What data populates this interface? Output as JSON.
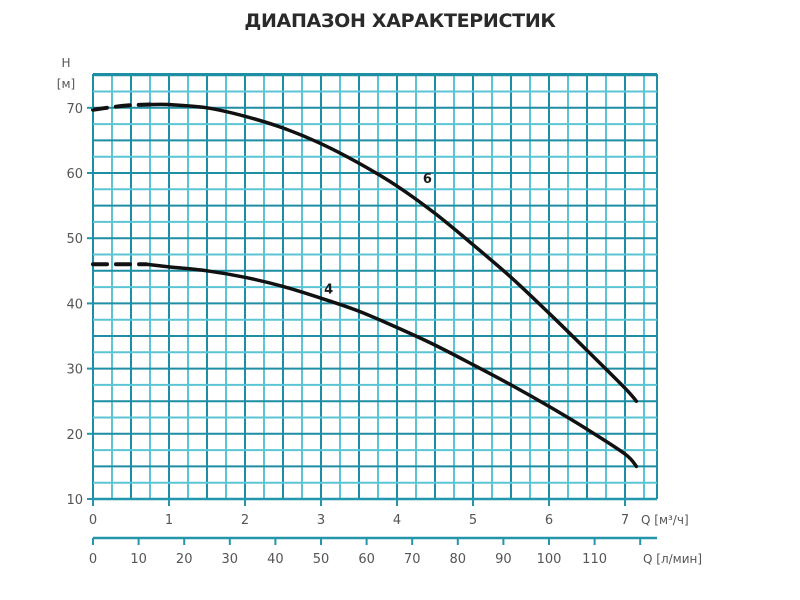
{
  "title": "ДИАПАЗОН ХАРАКТЕРИСТИК",
  "chart_data": {
    "type": "line",
    "title": "ДИАПАЗОН ХАРАКТЕРИСТИК",
    "ylabel": "H",
    "ylabel_unit": "[м]",
    "xlabel": "Q [м³/ч]",
    "x2label": "Q [л/мин]",
    "ylim": [
      10,
      75
    ],
    "xlim": [
      0,
      7.45
    ],
    "x2lim": [
      0,
      124.2
    ],
    "grid": true,
    "yticks": [
      10,
      20,
      30,
      40,
      50,
      60,
      70
    ],
    "xticks": [
      0,
      1,
      2,
      3,
      4,
      5,
      6,
      7
    ],
    "x2ticks": [
      0,
      10,
      20,
      30,
      40,
      50,
      60,
      70,
      80,
      90,
      100,
      110,
      120
    ],
    "x2tick_labels": [
      "0",
      "10",
      "20",
      "30",
      "40",
      "50",
      "60",
      "70",
      "80",
      "90",
      "100",
      "110",
      ""
    ],
    "series": [
      {
        "name": "6",
        "dashed_until": 0.75,
        "x": [
          0,
          0.25,
          0.5,
          0.75,
          1.0,
          1.5,
          2.0,
          2.5,
          3.0,
          3.5,
          4.0,
          4.5,
          5.0,
          5.5,
          6.0,
          6.5,
          7.0,
          7.15
        ],
        "y": [
          69.7,
          70.1,
          70.4,
          70.5,
          70.5,
          70.0,
          68.7,
          66.9,
          64.5,
          61.5,
          58.0,
          53.8,
          49.0,
          44.0,
          38.5,
          32.8,
          27.0,
          25.0
        ],
        "label_pos": [
          4.4,
          58.5
        ]
      },
      {
        "name": "4",
        "dashed_until": 0.7,
        "x": [
          0,
          0.25,
          0.5,
          0.7,
          1.0,
          1.5,
          2.0,
          2.5,
          3.0,
          3.5,
          4.0,
          4.5,
          5.0,
          5.5,
          6.0,
          6.5,
          7.0,
          7.15
        ],
        "y": [
          46.0,
          46.0,
          46.0,
          46.0,
          45.6,
          45.0,
          44.0,
          42.6,
          40.8,
          38.8,
          36.3,
          33.6,
          30.6,
          27.5,
          24.2,
          20.7,
          16.9,
          15.0
        ],
        "label_pos": [
          3.1,
          41.5
        ]
      }
    ]
  },
  "colors": {
    "grid_major": "#1d8ea3",
    "grid_minor": "#5cc5d5",
    "axis": "#2296aa",
    "curve": "#111111"
  }
}
